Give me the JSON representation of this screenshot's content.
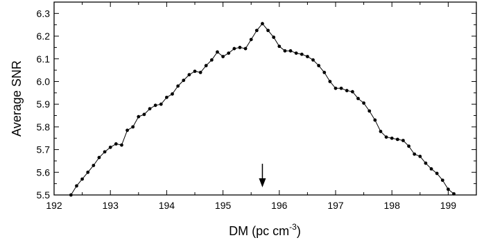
{
  "chart_data": {
    "type": "line",
    "xlabel": "DM (pc cm",
    "xlabel_sup": "-3",
    "xlabel_close": ")",
    "ylabel": "Average SNR",
    "xlim": [
      192,
      199.5
    ],
    "ylim": [
      5.5,
      6.35
    ],
    "xticks": [
      "192",
      "193",
      "194",
      "195",
      "196",
      "197",
      "198",
      "199"
    ],
    "yticks": [
      "5.5",
      "5.6",
      "5.7",
      "5.8",
      "5.9",
      "6.0",
      "6.1",
      "6.2",
      "6.3"
    ],
    "grid": false,
    "marker": "circle",
    "line_color": "#000000",
    "annotation": {
      "type": "arrow-down",
      "x": 195.7
    },
    "series": [
      {
        "x": [
          192.3,
          192.4,
          192.5,
          192.6,
          192.7,
          192.8,
          192.9,
          193.0,
          193.1,
          193.2,
          193.3,
          193.4,
          193.5,
          193.6,
          193.7,
          193.8,
          193.9,
          194.0,
          194.1,
          194.2,
          194.3,
          194.4,
          194.5,
          194.6,
          194.7,
          194.8,
          194.9,
          195.0,
          195.1,
          195.2,
          195.3,
          195.4,
          195.5,
          195.6,
          195.7,
          195.8,
          195.9,
          196.0,
          196.1,
          196.2,
          196.3,
          196.4,
          196.5,
          196.6,
          196.7,
          196.8,
          196.9,
          197.0,
          197.1,
          197.2,
          197.3,
          197.4,
          197.5,
          197.6,
          197.7,
          197.8,
          197.9,
          198.0,
          198.1,
          198.2,
          198.3,
          198.4,
          198.5,
          198.6,
          198.7,
          198.8,
          198.9,
          199.0,
          199.1
        ],
        "values": [
          5.5,
          5.54,
          5.57,
          5.6,
          5.63,
          5.665,
          5.69,
          5.71,
          5.725,
          5.72,
          5.785,
          5.8,
          5.845,
          5.855,
          5.88,
          5.895,
          5.9,
          5.93,
          5.945,
          5.98,
          6.005,
          6.03,
          6.045,
          6.04,
          6.07,
          6.095,
          6.13,
          6.11,
          6.125,
          6.145,
          6.15,
          6.145,
          6.185,
          6.225,
          6.255,
          6.225,
          6.195,
          6.155,
          6.135,
          6.135,
          6.125,
          6.12,
          6.11,
          6.095,
          6.07,
          6.04,
          6.0,
          5.97,
          5.97,
          5.96,
          5.955,
          5.925,
          5.905,
          5.87,
          5.83,
          5.78,
          5.755,
          5.75,
          5.745,
          5.74,
          5.715,
          5.68,
          5.67,
          5.64,
          5.615,
          5.595,
          5.565,
          5.525,
          5.505
        ]
      }
    ]
  }
}
